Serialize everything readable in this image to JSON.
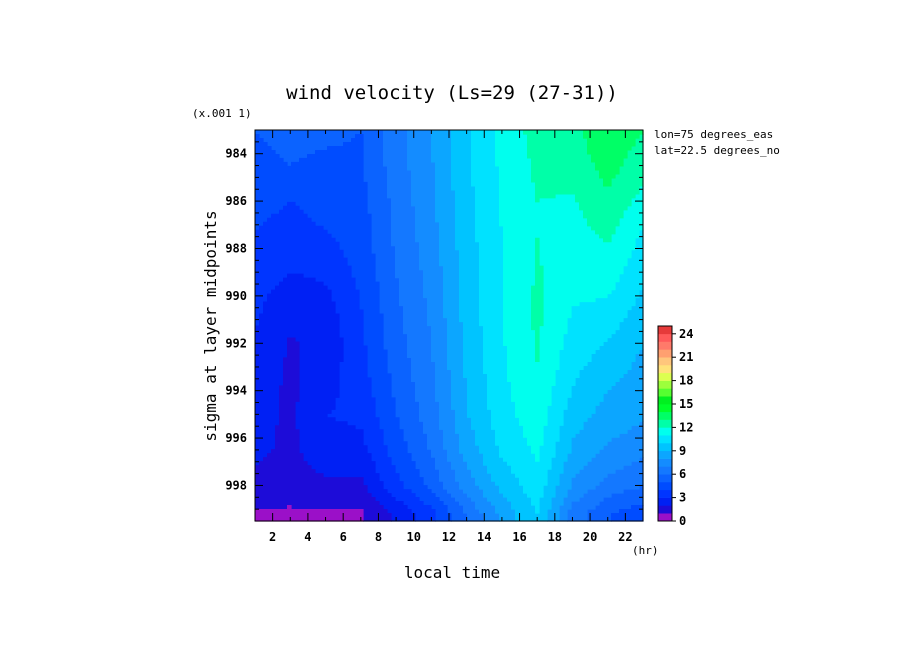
{
  "chart_data": {
    "type": "heatmap",
    "title": "wind velocity (Ls=29 (27-31))",
    "scale_note": "(x.001 1)",
    "xlabel": "local time",
    "xunit": "(hr)",
    "ylabel": "sigma at layer midpoints",
    "annotations": [
      "lon=75 degrees_eas",
      "lat=22.5 degrees_no"
    ],
    "xlim": [
      1,
      23
    ],
    "ylim": [
      999.5,
      983
    ],
    "x_ticks": [
      2,
      4,
      6,
      8,
      10,
      12,
      14,
      16,
      18,
      20,
      22
    ],
    "x_tick_labels": [
      "2",
      "4",
      "6",
      "8",
      "10",
      "12",
      "14",
      "16",
      "18",
      "20",
      "22"
    ],
    "y_ticks": [
      984,
      986,
      988,
      990,
      992,
      994,
      996,
      998
    ],
    "y_tick_labels": [
      "984",
      "986",
      "988",
      "990",
      "992",
      "994",
      "996",
      "998"
    ],
    "x": [
      1,
      3,
      5,
      7,
      9,
      11,
      13,
      15,
      17,
      19,
      21,
      23
    ],
    "y": [
      983,
      984.5,
      986,
      987.5,
      989,
      990.5,
      992,
      993.5,
      995,
      996.5,
      998,
      999.2
    ],
    "z": [
      [
        5.0,
        5.3,
        5.2,
        5.0,
        6.6,
        8.0,
        9.9,
        11.3,
        12.4,
        12.7,
        13.8,
        13.0
      ],
      [
        4.8,
        5.0,
        4.8,
        4.9,
        6.5,
        7.9,
        9.8,
        11.2,
        12.2,
        12.4,
        13.4,
        12.4
      ],
      [
        4.4,
        4.0,
        4.5,
        4.7,
        6.3,
        7.8,
        9.7,
        11.1,
        12.0,
        11.9,
        12.8,
        11.6
      ],
      [
        3.9,
        3.5,
        3.9,
        4.5,
        6.2,
        7.6,
        9.6,
        11.0,
        12.0,
        11.6,
        12.1,
        10.8
      ],
      [
        3.5,
        3.0,
        3.2,
        4.3,
        6.0,
        7.4,
        9.5,
        11.0,
        12.1,
        11.3,
        11.5,
        10.3
      ],
      [
        3.2,
        2.3,
        2.6,
        4.0,
        5.8,
        7.2,
        9.4,
        11.0,
        12.2,
        11.0,
        10.8,
        9.6
      ],
      [
        2.9,
        1.9,
        2.3,
        3.8,
        5.6,
        7.0,
        9.3,
        10.9,
        12.1,
        10.6,
        9.9,
        9.0
      ],
      [
        2.6,
        1.8,
        2.6,
        3.6,
        5.3,
        6.8,
        9.1,
        10.8,
        11.9,
        10.1,
        9.2,
        8.6
      ],
      [
        2.4,
        1.8,
        3.0,
        3.2,
        5.0,
        6.5,
        8.9,
        10.6,
        11.6,
        9.5,
        8.6,
        8.2
      ],
      [
        2.2,
        1.8,
        2.6,
        2.7,
        4.5,
        6.1,
        8.4,
        10.2,
        11.2,
        8.8,
        7.8,
        7.3
      ],
      [
        1.8,
        1.6,
        1.8,
        1.8,
        3.7,
        5.3,
        7.5,
        9.3,
        10.6,
        7.8,
        6.6,
        6.0
      ],
      [
        0.9,
        0.8,
        0.9,
        0.9,
        2.2,
        3.7,
        6.0,
        8.3,
        10.0,
        6.5,
        5.1,
        4.4
      ]
    ],
    "colorbar": {
      "levels": [
        0,
        1,
        2,
        3,
        4,
        5,
        6,
        7,
        8,
        9,
        10,
        11,
        12,
        13,
        14,
        15,
        16,
        17,
        18,
        19,
        20,
        21,
        22,
        23,
        24,
        25
      ],
      "colors": [
        "#9b10c8",
        "#1d0cd8",
        "#0020f4",
        "#0035ff",
        "#004cff",
        "#0b63ff",
        "#1478ff",
        "#148cff",
        "#0ca6ff",
        "#00c4ff",
        "#00e2ff",
        "#00ffee",
        "#00ffa8",
        "#00ff66",
        "#00ff2a",
        "#00f020",
        "#55ff30",
        "#9cff3c",
        "#dcff50",
        "#ffe27a",
        "#ffc67c",
        "#ffa070",
        "#ff7a6a",
        "#ff5a5a",
        "#e63a3a"
      ],
      "tick_values": [
        0,
        3,
        6,
        9,
        12,
        15,
        18,
        21,
        24
      ],
      "tick_labels": [
        "0",
        "3",
        "6",
        "9",
        "12",
        "15",
        "18",
        "21",
        "24"
      ]
    },
    "grid": false,
    "legend": "colorbar right-bottom"
  }
}
